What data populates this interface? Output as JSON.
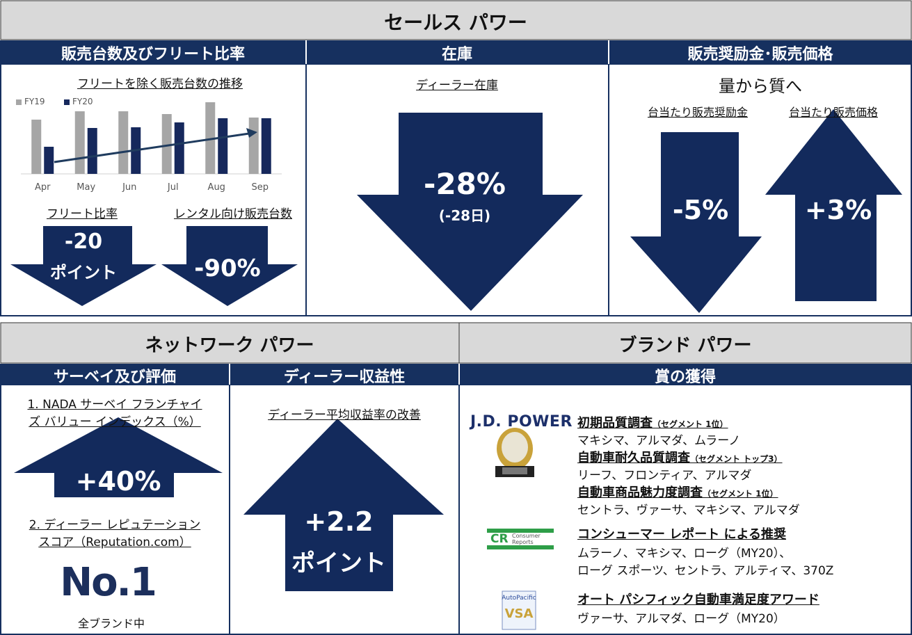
{
  "sales_power": {
    "title": "セールス パワー",
    "fleet": {
      "header": "販売台数及びフリート比率",
      "fleet_ratio": {
        "label": "フリート比率",
        "value_line1": "-20",
        "value_line2": "ポイント"
      },
      "rental": {
        "label": "レンタル向け販売台数",
        "value": "-90%"
      }
    },
    "inventory": {
      "header": "在庫",
      "label": "ディーラー在庫",
      "value": "-28%",
      "sub": "(-28日)"
    },
    "incentive": {
      "header": "販売奨励金･販売価格",
      "subtitle": "量から質へ",
      "incentive_label": "台当たり販売奨励金",
      "incentive_value": "-5%",
      "price_label": "台当たり販売価格",
      "price_value": "+3%"
    }
  },
  "chart_data": {
    "type": "bar",
    "title": "フリートを除く販売台数の推移",
    "categories": [
      "Apr",
      "May",
      "Jun",
      "Jul",
      "Aug",
      "Sep"
    ],
    "series": [
      {
        "name": "FY19",
        "color": "#a6a6a6",
        "values": [
          78,
          90,
          90,
          86,
          103,
          81
        ]
      },
      {
        "name": "FY20",
        "color": "#16285c",
        "values": [
          39,
          66,
          67,
          74,
          80,
          80
        ]
      }
    ]
  },
  "network_power": {
    "title": "ネットワーク パワー",
    "survey": {
      "header": "サーベイ及び評価",
      "item1": [
        "1. NADA サーベイ フランチャイ",
        "ズ バリュー インデックス（%）"
      ],
      "value1": "+40%",
      "item2": [
        "2. ディーラー レピュテーション",
        "スコア（Reputation.com）"
      ],
      "rank": "No.1",
      "rank_note": "全ブランド中"
    },
    "profitability": {
      "header": "ディーラー収益性",
      "label": "ディーラー平均収益率の改善",
      "value_line1": "+2.2",
      "value_line2": "ポイント"
    }
  },
  "brand_power": {
    "title": "ブランド パワー",
    "header": "賞の獲得",
    "jd_power": {
      "logo": "J.D. POWER",
      "items": [
        {
          "title": "初期品質調査",
          "note": "（セグメント 1位）",
          "models": "マキシマ、アルマダ、ムラーノ"
        },
        {
          "title": "自動車耐久品質調査",
          "note": "（セグメント トップ3）",
          "models": "リーフ、フロンティア、アルマダ"
        },
        {
          "title": "自動車商品魅力度調査",
          "note": "（セグメント 1位）",
          "models": "セントラ、ヴァーサ、マキシマ、アルマダ"
        }
      ]
    },
    "consumer_reports": {
      "logo_mark": "CR",
      "logo_text": [
        "Consumer",
        "Reports"
      ],
      "title": "コンシューマー レポート による推奨",
      "models": [
        "ムラーノ、マキシマ、ローグ（MY20）、",
        "ローグ スポーツ、セントラ、アルティマ、370Z"
      ]
    },
    "autopacific": {
      "logo_text": "AutoPacific",
      "logo_mark": "VSA",
      "title": "オート パシフィック自動車満足度アワード",
      "models": "ヴァーサ、アルマダ、ローグ（MY20）"
    }
  }
}
